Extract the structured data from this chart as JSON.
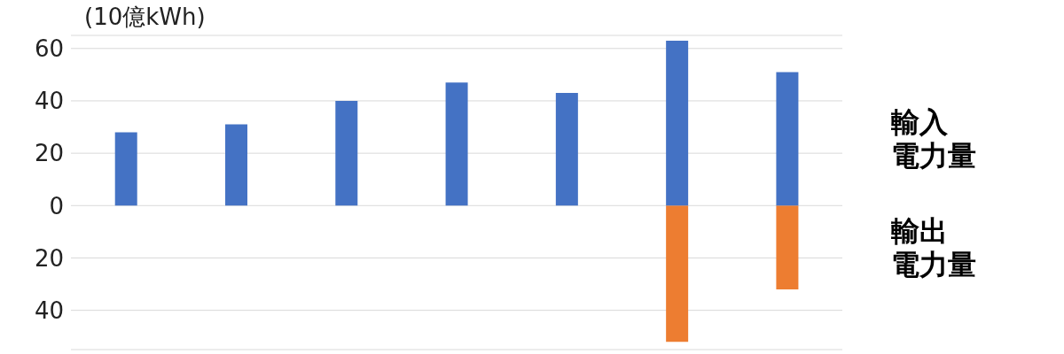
{
  "chart_data": {
    "type": "bar",
    "ylabel": "(10億kWh)",
    "categories": [
      null,
      null,
      null,
      null,
      null,
      null,
      null
    ],
    "stacked": true,
    "series": [
      {
        "name": "輸出電力量",
        "color": "#ed7d31",
        "values": [
          null,
          null,
          null,
          null,
          null,
          -52,
          -32
        ]
      },
      {
        "name": "輸入電力量",
        "color": "#4472c4",
        "values": [
          28,
          31,
          40,
          47,
          43,
          63,
          51
        ]
      }
    ],
    "ylim": [
      -55,
      65
    ],
    "yticks": [
      {
        "value": -40,
        "label": "40"
      },
      {
        "value": -20,
        "label": "20"
      },
      0,
      20,
      40,
      60
    ],
    "grid": "y",
    "legend": false,
    "tick_labels": "y"
  }
}
